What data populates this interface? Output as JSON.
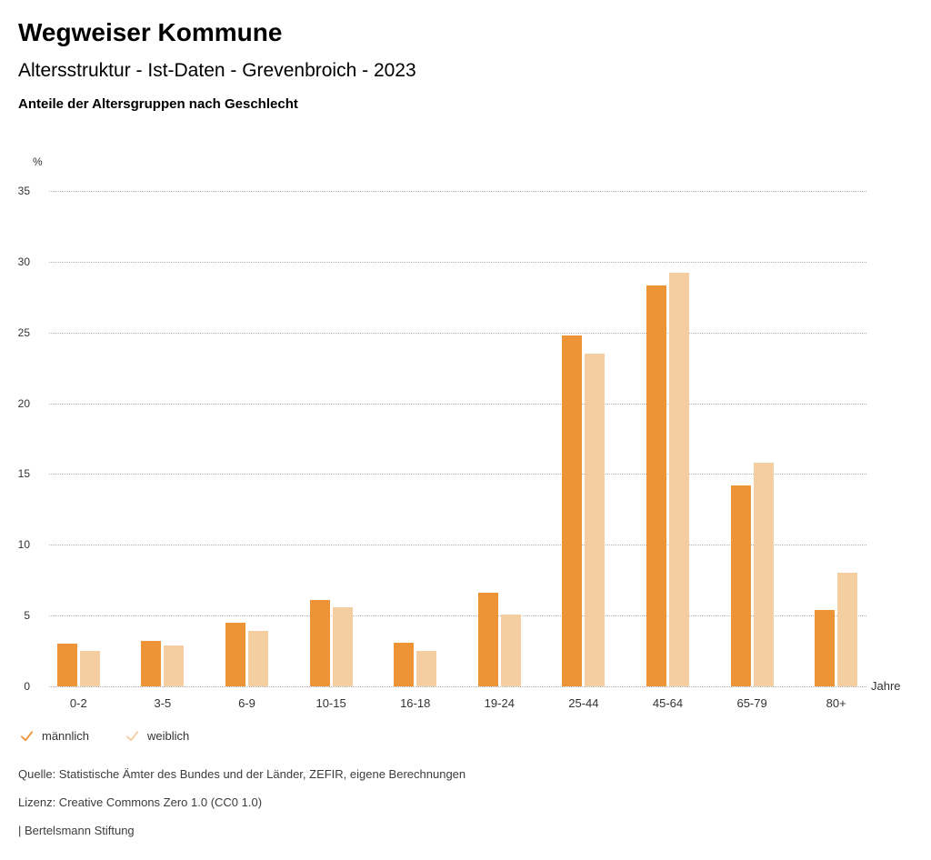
{
  "header": {
    "title": "Wegweiser Kommune",
    "subtitle": "Altersstruktur - Ist-Daten - Grevenbroich - 2023",
    "heading": "Anteile der Altersgruppen nach Geschlecht"
  },
  "chart_data": {
    "type": "bar",
    "title": "Anteile der Altersgruppen nach Geschlecht",
    "unit": "%",
    "xlabel": "Jahre",
    "ylim": [
      0,
      35
    ],
    "yticks": [
      0,
      5,
      10,
      15,
      20,
      25,
      30,
      35
    ],
    "grid": "horizontal-dotted",
    "legend_position": "bottom-left",
    "categories": [
      "0-2",
      "3-5",
      "6-9",
      "10-15",
      "16-18",
      "19-24",
      "25-44",
      "45-64",
      "65-79",
      "80+"
    ],
    "series": [
      {
        "id": "male",
        "name": "männlich",
        "color": "#EC9436",
        "values": [
          3.0,
          3.2,
          4.5,
          6.1,
          3.1,
          6.6,
          24.8,
          28.3,
          14.2,
          5.4
        ]
      },
      {
        "id": "female",
        "name": "weiblich",
        "color": "#F4CEA0",
        "values": [
          2.5,
          2.9,
          3.9,
          5.6,
          2.5,
          5.1,
          23.5,
          29.2,
          15.8,
          8.0
        ]
      }
    ]
  },
  "footer": {
    "source": "Quelle: Statistische Ämter des Bundes und der Länder, ZEFIR, eigene Berechnungen",
    "license": "Lizenz: Creative Commons Zero 1.0 (CC0 1.0)",
    "attribution": "| Bertelsmann Stiftung"
  }
}
